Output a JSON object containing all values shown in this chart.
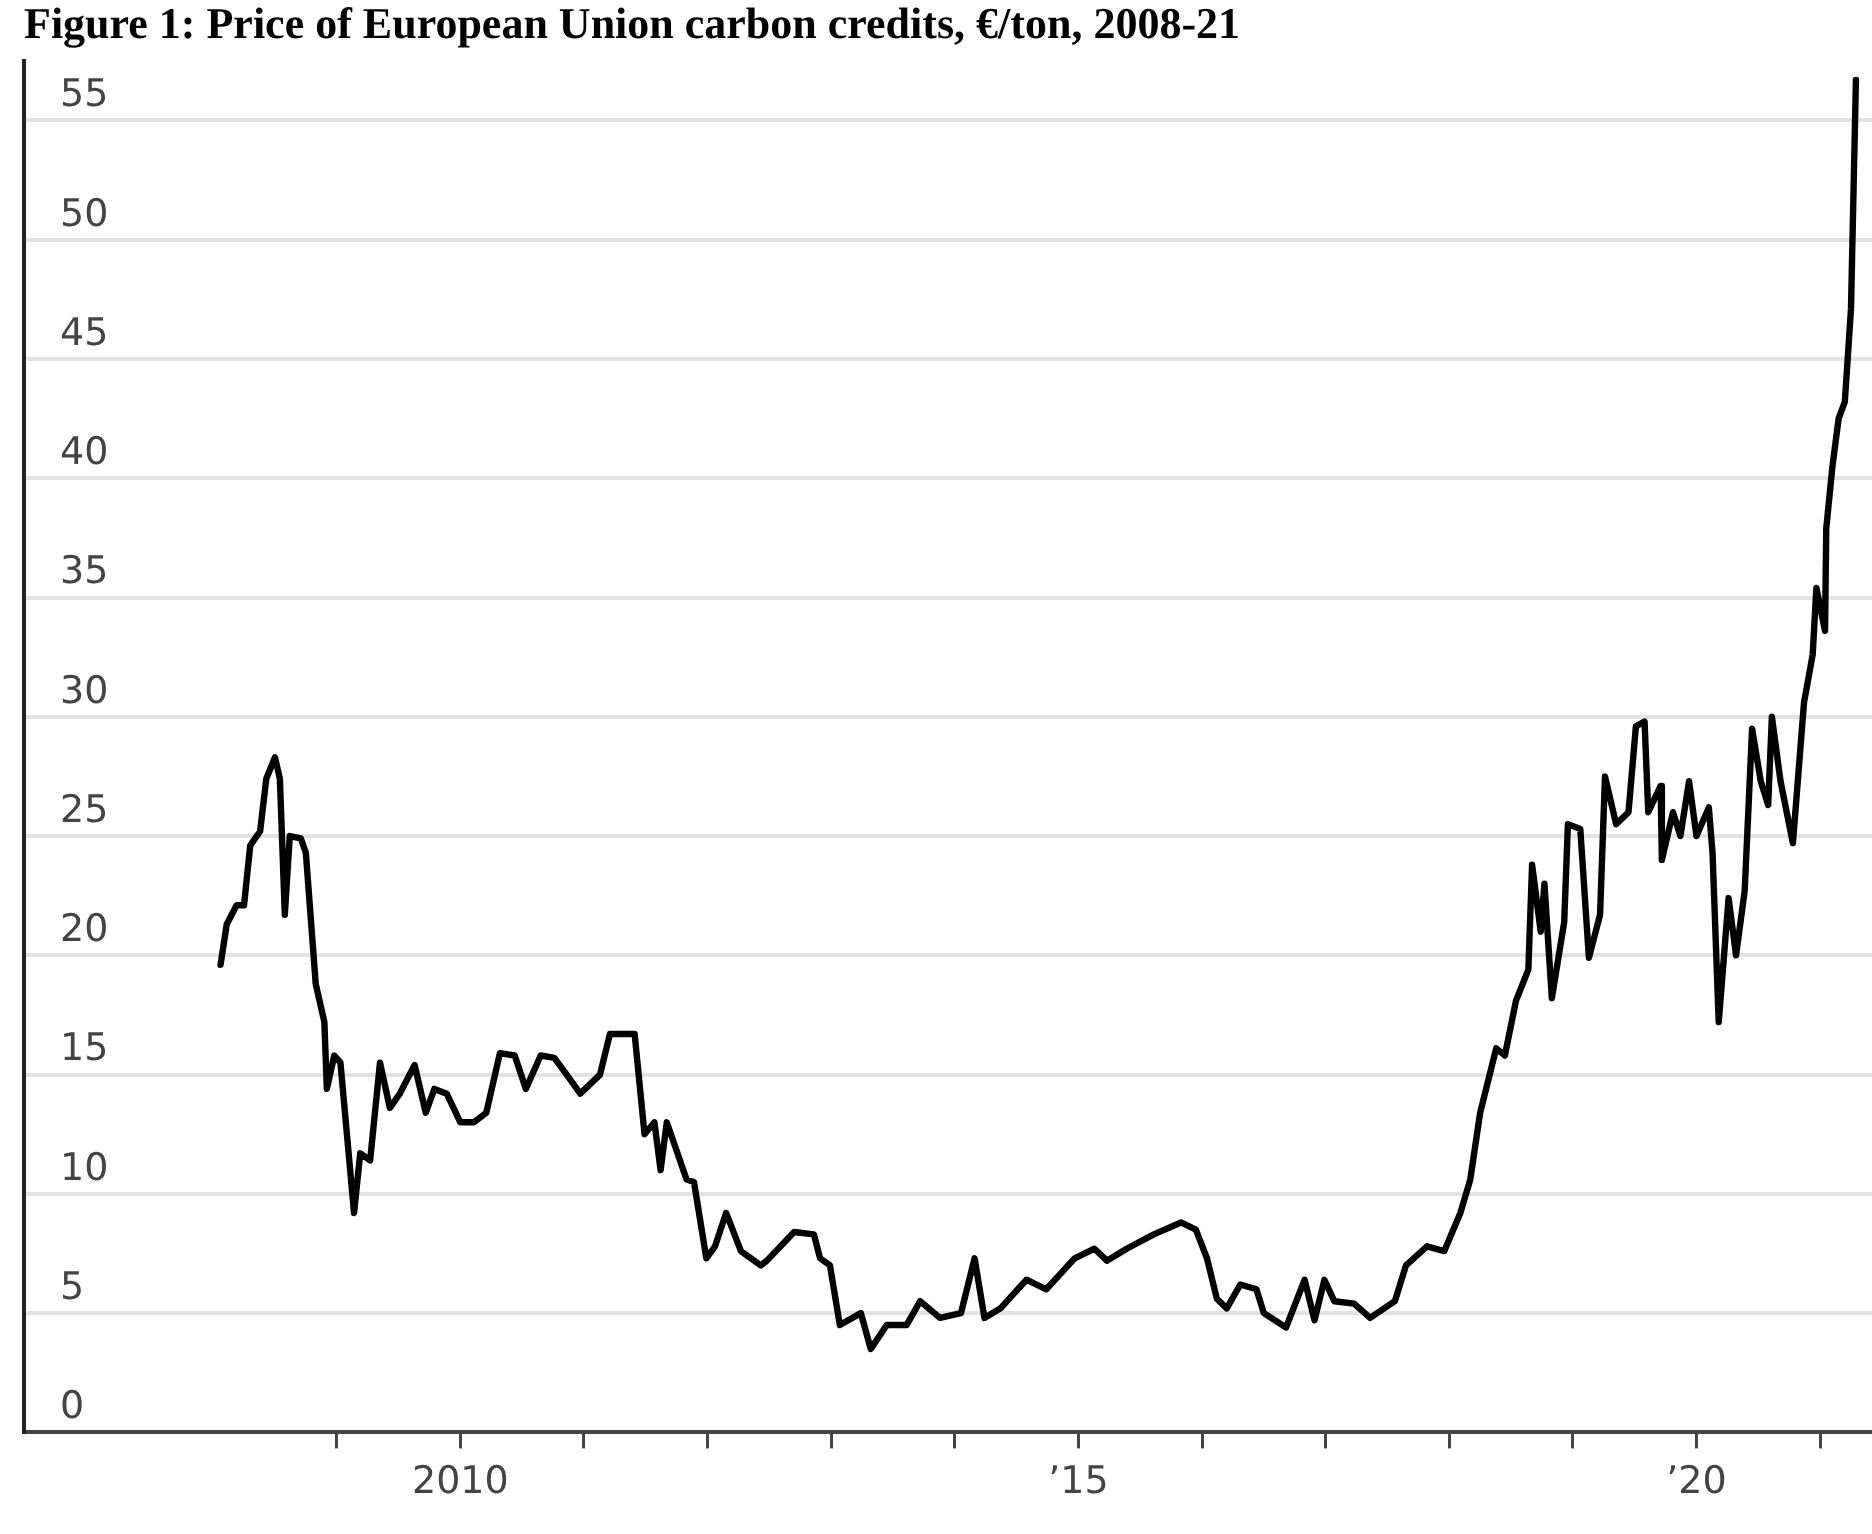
{
  "chart_data": {
    "type": "line",
    "title": "Figure 1: Price of European Union carbon credits, €/ton, 2008-21",
    "color": "#000000",
    "marker": "none",
    "line_style": "solid",
    "grid": "y",
    "x": [
      2008.06,
      2008.11,
      2008.19,
      2008.25,
      2008.3,
      2008.38,
      2008.43,
      2008.5,
      2008.54,
      2008.58,
      2008.62,
      2008.71,
      2008.75,
      2008.83,
      2008.9,
      2008.92,
      2008.98,
      2009.03,
      2009.14,
      2009.19,
      2009.27,
      2009.35,
      2009.43,
      2009.51,
      2009.63,
      2009.72,
      2009.79,
      2009.89,
      2010.0,
      2010.11,
      2010.21,
      2010.32,
      2010.44,
      2010.53,
      2010.65,
      2010.76,
      2010.86,
      2010.97,
      2011.13,
      2011.21,
      2011.41,
      2011.49,
      2011.57,
      2011.62,
      2011.67,
      2011.83,
      2011.89,
      2011.99,
      2012.06,
      2012.15,
      2012.27,
      2012.43,
      2012.48,
      2012.7,
      2012.86,
      2012.91,
      2012.99,
      2013.07,
      2013.24,
      2013.32,
      2013.45,
      2013.61,
      2013.72,
      2013.88,
      2014.05,
      2014.16,
      2014.24,
      2014.37,
      2014.58,
      2014.74,
      2014.97,
      2015.13,
      2015.23,
      2015.39,
      2015.61,
      2015.83,
      2015.95,
      2016.04,
      2016.12,
      2016.2,
      2016.31,
      2016.44,
      2016.5,
      2016.68,
      2016.83,
      2016.91,
      2016.99,
      2017.07,
      2017.23,
      2017.36,
      2017.56,
      2017.65,
      2017.82,
      2017.96,
      2018.09,
      2018.17,
      2018.25,
      2018.38,
      2018.45,
      2018.54,
      2018.64,
      2018.67,
      2018.74,
      2018.77,
      2018.83,
      2018.93,
      2018.96,
      2019.06,
      2019.13,
      2019.22,
      2019.26,
      2019.35,
      2019.45,
      2019.51,
      2019.58,
      2019.61,
      2019.71,
      2019.72,
      2019.81,
      2019.87,
      2019.94,
      2020.0,
      2020.1,
      2020.13,
      2020.18,
      2020.26,
      2020.32,
      2020.39,
      2020.45,
      2020.52,
      2020.58,
      2020.61,
      2020.68,
      2020.78,
      2020.87,
      2020.94,
      2020.97,
      2021.04,
      2021.05,
      2021.1,
      2021.15,
      2021.2,
      2021.25,
      2021.29
    ],
    "values": [
      19.6,
      21.3,
      22.1,
      22.1,
      24.6,
      25.2,
      27.4,
      28.3,
      27.4,
      21.7,
      25.0,
      24.9,
      24.3,
      18.8,
      17.2,
      14.4,
      15.8,
      15.5,
      9.2,
      11.7,
      11.4,
      15.5,
      13.6,
      14.2,
      15.4,
      13.4,
      14.4,
      14.2,
      13.0,
      13.0,
      13.4,
      15.9,
      15.8,
      14.4,
      15.8,
      15.7,
      15.0,
      14.2,
      15.0,
      16.7,
      16.7,
      12.5,
      13.0,
      11.0,
      13.0,
      10.6,
      10.5,
      7.3,
      7.8,
      9.2,
      7.6,
      7.0,
      7.2,
      8.4,
      8.3,
      7.3,
      7.0,
      4.5,
      5.0,
      3.5,
      4.5,
      4.5,
      5.5,
      4.8,
      5.0,
      7.3,
      4.8,
      5.2,
      6.4,
      6.0,
      7.3,
      7.7,
      7.2,
      7.7,
      8.3,
      8.8,
      8.5,
      7.3,
      5.6,
      5.2,
      6.2,
      6.0,
      5.0,
      4.4,
      6.4,
      4.7,
      6.4,
      5.5,
      5.4,
      4.8,
      5.5,
      7.0,
      7.8,
      7.6,
      9.2,
      10.6,
      13.4,
      16.1,
      15.8,
      18.1,
      19.4,
      23.8,
      21.0,
      23.0,
      18.2,
      21.4,
      25.5,
      25.3,
      19.9,
      21.7,
      27.5,
      25.5,
      26.0,
      29.6,
      29.8,
      26.0,
      27.1,
      24.0,
      26.0,
      25.0,
      27.3,
      25.0,
      26.2,
      24.3,
      17.2,
      22.4,
      20.0,
      22.7,
      29.5,
      27.3,
      26.3,
      30.0,
      27.3,
      24.7,
      30.6,
      32.6,
      35.4,
      33.6,
      37.9,
      40.5,
      42.5,
      43.2,
      47.1,
      56.7
    ],
    "xlim": [
      2006.47,
      2021.42
    ],
    "xticks": [
      {
        "value": 2009,
        "label": null
      },
      {
        "value": 2010,
        "label": "2010"
      },
      {
        "value": 2011,
        "label": null
      },
      {
        "value": 2012,
        "label": null
      },
      {
        "value": 2013,
        "label": null
      },
      {
        "value": 2014,
        "label": null
      },
      {
        "value": 2015,
        "label": "’15"
      },
      {
        "value": 2016,
        "label": null
      },
      {
        "value": 2017,
        "label": null
      },
      {
        "value": 2018,
        "label": null
      },
      {
        "value": 2019,
        "label": null
      },
      {
        "value": 2020,
        "label": "’20"
      },
      {
        "value": 2021,
        "label": null
      }
    ],
    "ylim": [
      0,
      57.5
    ],
    "yticks": [
      0,
      5,
      10,
      15,
      20,
      25,
      30,
      35,
      40,
      45,
      50,
      55
    ]
  }
}
